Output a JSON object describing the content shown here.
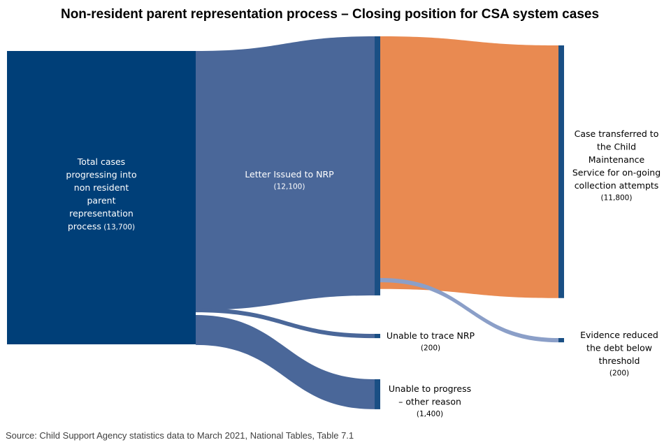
{
  "chart_data": {
    "type": "sankey",
    "title": "Non-resident parent representation process – Closing position for CSA system cases",
    "source": "Source: Child Support Agency statistics data to March 2021, National Tables, Table 7.1",
    "nodes": [
      {
        "id": "total",
        "label": "Total cases progressing into non resident parent representation process",
        "value": 13700,
        "value_label": "(13,700)",
        "color": "#003f78",
        "label_color": "#ffffff"
      },
      {
        "id": "letter",
        "label": "Letter Issued to NRP",
        "value": 12100,
        "value_label": "(12,100)",
        "color": "#1a4f84",
        "label_color": "#ffffff"
      },
      {
        "id": "untraced",
        "label": "Unable to trace NRP",
        "value": 200,
        "value_label": "(200)",
        "color": "#1a4f84",
        "label_color": "#000000"
      },
      {
        "id": "other",
        "label": "Unable to progress – other reason",
        "value": 1400,
        "value_label": "(1,400)",
        "color": "#1a4f84",
        "label_color": "#000000"
      },
      {
        "id": "cms",
        "label": "Case transferred to the Child Maintenance Service for on-going collection attempts",
        "value": 11800,
        "value_label": "(11,800)",
        "color": "#1a4f84",
        "label_color": "#000000"
      },
      {
        "id": "evidence",
        "label": "Evidence reduced the debt below threshold",
        "value": 200,
        "value_label": "(200)",
        "color": "#1a4f84",
        "label_color": "#000000"
      }
    ],
    "links": [
      {
        "source": "total",
        "target": "letter",
        "value": 12100,
        "color": "#4a6799"
      },
      {
        "source": "total",
        "target": "untraced",
        "value": 200,
        "color": "#4a6799"
      },
      {
        "source": "total",
        "target": "other",
        "value": 1400,
        "color": "#4a6799"
      },
      {
        "source": "letter",
        "target": "cms",
        "value": 11800,
        "color": "#e98a51"
      },
      {
        "source": "letter",
        "target": "evidence",
        "value": 200,
        "color": "#8b9fc8"
      }
    ]
  }
}
